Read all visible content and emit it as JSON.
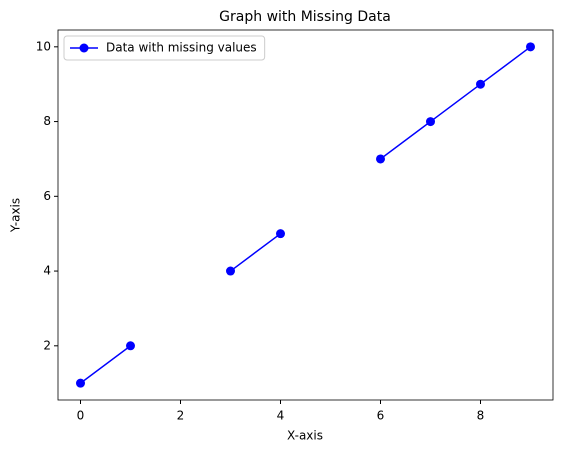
{
  "chart_data": {
    "type": "line",
    "title": "Graph with Missing Data",
    "x_label": "X-axis",
    "y_label": "Y-axis",
    "x": [
      0,
      1,
      2,
      3,
      4,
      5,
      6,
      7,
      8,
      9
    ],
    "series": [
      {
        "name": "Data with missing values",
        "color": "#0000ff",
        "values": [
          1,
          2,
          null,
          4,
          5,
          null,
          7,
          8,
          9,
          10
        ]
      }
    ],
    "xlim": [
      -0.45,
      9.45
    ],
    "ylim": [
      0.55,
      10.45
    ],
    "xticks": [
      0,
      2,
      4,
      6,
      8
    ],
    "yticks": [
      2,
      4,
      6,
      8,
      10
    ],
    "grid": false,
    "legend": "upper left",
    "marker": "o"
  }
}
